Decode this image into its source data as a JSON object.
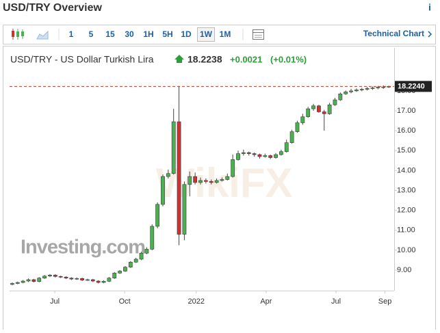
{
  "header": {
    "title": "USD/TRY Overview",
    "info_icon": "i"
  },
  "toolbar": {
    "intervals": [
      "1",
      "5",
      "15",
      "30",
      "1H",
      "5H",
      "1D",
      "1W",
      "1M"
    ],
    "active_interval": "1W",
    "technical_chart": "Technical Chart"
  },
  "quote": {
    "name": "USD/TRY - US Dollar Turkish Lira",
    "price": "18.2238",
    "change": "+0.0021",
    "change_pct": "(+0.01%)"
  },
  "watermarks": [
    "Investing.com",
    "WikiFX"
  ],
  "chart_data": {
    "type": "candlestick",
    "up_color": "#4caf50",
    "down_color": "#d32f2f",
    "xlim": [
      -0.5,
      70.5
    ],
    "xticks": [
      {
        "value": 7.9,
        "label": "Jul"
      },
      {
        "value": 20.9,
        "label": "Oct"
      },
      {
        "value": 34.2,
        "label": "2022"
      },
      {
        "value": 47.2,
        "label": "Apr"
      },
      {
        "value": 60.2,
        "label": "Jul"
      },
      {
        "value": 69.3,
        "label": "Sep"
      }
    ],
    "ylim": [
      7.97,
      19.13
    ],
    "yticks": [
      {
        "value": 9,
        "label": "9.00"
      },
      {
        "value": 10,
        "label": "10.00"
      },
      {
        "value": 11,
        "label": "11.00"
      },
      {
        "value": 12,
        "label": "12.00"
      },
      {
        "value": 13,
        "label": "13.00"
      },
      {
        "value": 14,
        "label": "14.00"
      },
      {
        "value": 15,
        "label": "15.00"
      },
      {
        "value": 16,
        "label": "16.00"
      },
      {
        "value": 17,
        "label": "17.00"
      },
      {
        "value": 18,
        "label": "18.00"
      }
    ],
    "grid": false,
    "last_price": {
      "value": 18.224,
      "label": "18.2240"
    },
    "open": [
      8.28,
      8.33,
      8.38,
      8.45,
      8.52,
      8.43,
      8.6,
      8.7,
      8.75,
      8.68,
      8.65,
      8.6,
      8.55,
      8.58,
      8.5,
      8.52,
      8.45,
      8.38,
      8.44,
      8.6,
      8.85,
      8.95,
      9.15,
      9.4,
      9.55,
      9.85,
      10.05,
      11.2,
      12.3,
      13.7,
      13.85,
      16.45,
      10.8,
      13.3,
      13.7,
      13.4,
      13.5,
      13.45,
      13.4,
      13.5,
      13.55,
      13.7,
      14.55,
      14.85,
      14.9,
      14.85,
      14.8,
      14.7,
      14.75,
      14.65,
      14.8,
      14.95,
      15.4,
      15.95,
      16.4,
      16.7,
      17.1,
      17.25,
      16.95,
      16.85,
      17.3,
      17.55,
      17.85,
      17.95,
      18.0,
      18.05,
      18.08,
      18.12,
      18.15,
      18.18,
      18.2
    ],
    "high": [
      8.38,
      8.42,
      8.5,
      8.58,
      8.56,
      8.65,
      8.75,
      8.8,
      8.79,
      8.72,
      8.69,
      8.64,
      8.63,
      8.62,
      8.57,
      8.56,
      8.49,
      8.49,
      8.65,
      8.9,
      9.0,
      9.2,
      9.45,
      9.62,
      9.92,
      10.15,
      11.3,
      12.4,
      13.8,
      14.05,
      17.1,
      18.25,
      13.45,
      13.95,
      13.9,
      13.65,
      13.6,
      13.55,
      13.6,
      13.65,
      13.85,
      14.8,
      15.0,
      15.05,
      14.95,
      14.9,
      14.85,
      14.85,
      14.8,
      14.88,
      15.05,
      15.55,
      16.05,
      16.5,
      16.85,
      17.2,
      17.35,
      17.3,
      17.05,
      17.4,
      17.65,
      17.92,
      18.02,
      18.1,
      18.12,
      18.15,
      18.2,
      18.22,
      18.25,
      18.28,
      18.26
    ],
    "low": [
      8.24,
      8.29,
      8.34,
      8.4,
      8.38,
      8.39,
      8.56,
      8.65,
      8.63,
      8.6,
      8.55,
      8.5,
      8.51,
      8.45,
      8.46,
      8.4,
      8.33,
      8.34,
      8.4,
      8.56,
      8.81,
      8.91,
      9.11,
      9.36,
      9.5,
      9.8,
      10.0,
      11.1,
      12.2,
      13.6,
      13.8,
      10.25,
      10.5,
      12.7,
      13.3,
      13.3,
      13.35,
      13.3,
      13.35,
      13.45,
      13.5,
      13.65,
      14.5,
      14.75,
      14.75,
      14.7,
      14.6,
      14.65,
      14.58,
      14.6,
      14.75,
      14.9,
      15.35,
      15.9,
      16.3,
      16.65,
      17.0,
      16.9,
      16.0,
      16.8,
      17.25,
      17.5,
      17.8,
      17.88,
      17.95,
      17.98,
      18.02,
      18.05,
      18.08,
      18.1,
      18.15
    ],
    "close": [
      8.33,
      8.38,
      8.45,
      8.52,
      8.43,
      8.6,
      8.7,
      8.75,
      8.68,
      8.65,
      8.6,
      8.55,
      8.58,
      8.5,
      8.52,
      8.45,
      8.38,
      8.44,
      8.6,
      8.85,
      8.95,
      9.15,
      9.4,
      9.55,
      9.85,
      10.05,
      11.2,
      12.3,
      13.7,
      13.85,
      16.45,
      10.8,
      13.3,
      13.7,
      13.4,
      13.5,
      13.45,
      13.4,
      13.5,
      13.55,
      13.7,
      14.55,
      14.85,
      14.9,
      14.85,
      14.8,
      14.7,
      14.75,
      14.65,
      14.8,
      14.95,
      15.4,
      15.95,
      16.4,
      16.7,
      17.1,
      17.25,
      16.95,
      16.85,
      17.3,
      17.55,
      17.85,
      17.95,
      18.0,
      18.05,
      18.08,
      18.12,
      18.15,
      18.18,
      18.2,
      18.2238
    ]
  }
}
